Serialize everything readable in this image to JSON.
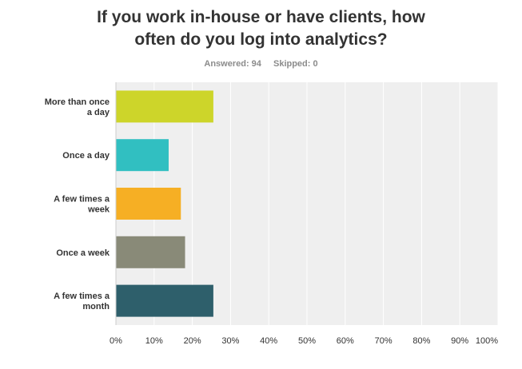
{
  "title_line1": "If you work in-house or have clients, how",
  "title_line2": "often do you log into analytics?",
  "answered_label": "Answered: 94",
  "skipped_label": "Skipped: 0",
  "colors": {
    "plot_background": "#efefef",
    "gridline": "#ffffff"
  },
  "chart_data": {
    "type": "bar",
    "orientation": "horizontal",
    "categories": [
      [
        "More than once",
        "a day"
      ],
      [
        "Once a day"
      ],
      [
        "A few times a",
        "week"
      ],
      [
        "Once a week"
      ],
      [
        "A few times a",
        "month"
      ]
    ],
    "values": [
      25.5,
      13.8,
      17.0,
      18.1,
      25.5
    ],
    "value_unit": "%",
    "bar_colors": [
      "#cdd52a",
      "#31bfc1",
      "#f6af24",
      "#898a78",
      "#2e5f6b"
    ],
    "xlim": [
      0,
      100
    ],
    "xticks": [
      "0%",
      "10%",
      "20%",
      "30%",
      "40%",
      "50%",
      "60%",
      "70%",
      "80%",
      "90%",
      "100%"
    ],
    "grid": true,
    "legend": "none"
  }
}
